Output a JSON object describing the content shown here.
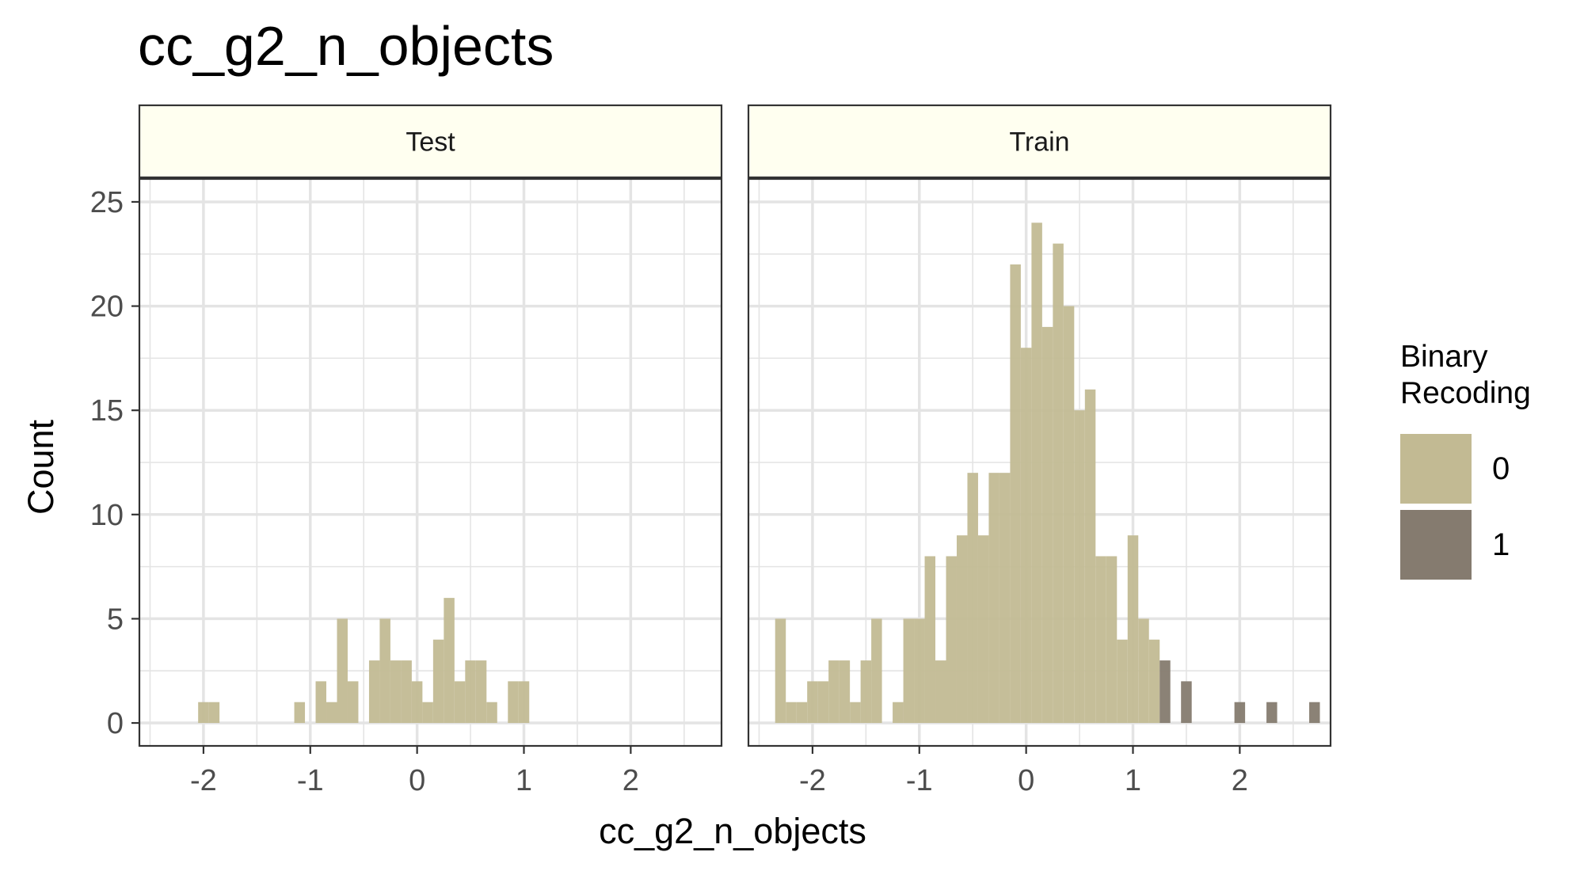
{
  "chart_data": {
    "type": "bar",
    "title": "cc_g2_n_objects",
    "xlabel": "cc_g2_n_objects",
    "ylabel": "Count",
    "xlim": [
      -2.6,
      2.85
    ],
    "ylim": [
      -1.1,
      26.1
    ],
    "x_ticks": [
      "-2",
      "-1",
      "0",
      "1",
      "2"
    ],
    "y_ticks": [
      "0",
      "5",
      "10",
      "15",
      "20",
      "25"
    ],
    "grid": true,
    "bin_width": 0.1,
    "legend": {
      "title": "Binary\nRecoding",
      "placement": "right",
      "entries": [
        {
          "label": "0",
          "color": "#c2ba93"
        },
        {
          "label": "1",
          "color": "#857b6f"
        }
      ]
    },
    "colors": {
      "strip_fill": "#fffff0",
      "grid": "#e4e4e4",
      "panel_border": "#333333"
    },
    "panels": [
      {
        "strip": "Test",
        "bins": [
          {
            "x": -2.0,
            "value": 1,
            "group": "0"
          },
          {
            "x": -1.9,
            "value": 1,
            "group": "0"
          },
          {
            "x": -1.1,
            "value": 1,
            "group": "0"
          },
          {
            "x": -0.9,
            "value": 2,
            "group": "0"
          },
          {
            "x": -0.8,
            "value": 1,
            "group": "0"
          },
          {
            "x": -0.7,
            "value": 5,
            "group": "0"
          },
          {
            "x": -0.6,
            "value": 2,
            "group": "0"
          },
          {
            "x": -0.4,
            "value": 3,
            "group": "0"
          },
          {
            "x": -0.3,
            "value": 5,
            "group": "0"
          },
          {
            "x": -0.2,
            "value": 3,
            "group": "0"
          },
          {
            "x": -0.1,
            "value": 3,
            "group": "0"
          },
          {
            "x": 0.0,
            "value": 2,
            "group": "0"
          },
          {
            "x": 0.1,
            "value": 1,
            "group": "0"
          },
          {
            "x": 0.2,
            "value": 4,
            "group": "0"
          },
          {
            "x": 0.3,
            "value": 6,
            "group": "0"
          },
          {
            "x": 0.4,
            "value": 2,
            "group": "0"
          },
          {
            "x": 0.5,
            "value": 3,
            "group": "0"
          },
          {
            "x": 0.6,
            "value": 3,
            "group": "0"
          },
          {
            "x": 0.7,
            "value": 1,
            "group": "0"
          },
          {
            "x": 0.9,
            "value": 2,
            "group": "0"
          },
          {
            "x": 1.0,
            "value": 2,
            "group": "0"
          }
        ]
      },
      {
        "strip": "Train",
        "bins": [
          {
            "x": -2.3,
            "value": 5,
            "group": "0"
          },
          {
            "x": -2.2,
            "value": 1,
            "group": "0"
          },
          {
            "x": -2.1,
            "value": 1,
            "group": "0"
          },
          {
            "x": -2.0,
            "value": 2,
            "group": "0"
          },
          {
            "x": -1.9,
            "value": 2,
            "group": "0"
          },
          {
            "x": -1.8,
            "value": 3,
            "group": "0"
          },
          {
            "x": -1.7,
            "value": 3,
            "group": "0"
          },
          {
            "x": -1.6,
            "value": 1,
            "group": "0"
          },
          {
            "x": -1.5,
            "value": 3,
            "group": "0"
          },
          {
            "x": -1.4,
            "value": 5,
            "group": "0"
          },
          {
            "x": -1.2,
            "value": 1,
            "group": "0"
          },
          {
            "x": -1.1,
            "value": 5,
            "group": "0"
          },
          {
            "x": -1.0,
            "value": 5,
            "group": "0"
          },
          {
            "x": -0.9,
            "value": 8,
            "group": "0"
          },
          {
            "x": -0.8,
            "value": 3,
            "group": "0"
          },
          {
            "x": -0.7,
            "value": 8,
            "group": "0"
          },
          {
            "x": -0.6,
            "value": 9,
            "group": "0"
          },
          {
            "x": -0.5,
            "value": 12,
            "group": "0"
          },
          {
            "x": -0.4,
            "value": 9,
            "group": "0"
          },
          {
            "x": -0.3,
            "value": 12,
            "group": "0"
          },
          {
            "x": -0.2,
            "value": 12,
            "group": "0"
          },
          {
            "x": -0.1,
            "value": 22,
            "group": "0"
          },
          {
            "x": 0.0,
            "value": 18,
            "group": "0"
          },
          {
            "x": 0.1,
            "value": 24,
            "group": "0"
          },
          {
            "x": 0.2,
            "value": 19,
            "group": "0"
          },
          {
            "x": 0.3,
            "value": 23,
            "group": "0"
          },
          {
            "x": 0.4,
            "value": 20,
            "group": "0"
          },
          {
            "x": 0.5,
            "value": 15,
            "group": "0"
          },
          {
            "x": 0.6,
            "value": 16,
            "group": "0"
          },
          {
            "x": 0.7,
            "value": 8,
            "group": "0"
          },
          {
            "x": 0.8,
            "value": 8,
            "group": "0"
          },
          {
            "x": 0.9,
            "value": 4,
            "group": "0"
          },
          {
            "x": 1.0,
            "value": 9,
            "group": "0"
          },
          {
            "x": 1.1,
            "value": 5,
            "group": "0"
          },
          {
            "x": 1.2,
            "value": 4,
            "group": "0"
          },
          {
            "x": 1.3,
            "value": 3,
            "group": "1"
          },
          {
            "x": 1.5,
            "value": 2,
            "group": "1"
          },
          {
            "x": 2.0,
            "value": 1,
            "group": "1"
          },
          {
            "x": 2.3,
            "value": 1,
            "group": "1"
          },
          {
            "x": 2.7,
            "value": 1,
            "group": "1"
          }
        ]
      }
    ]
  }
}
